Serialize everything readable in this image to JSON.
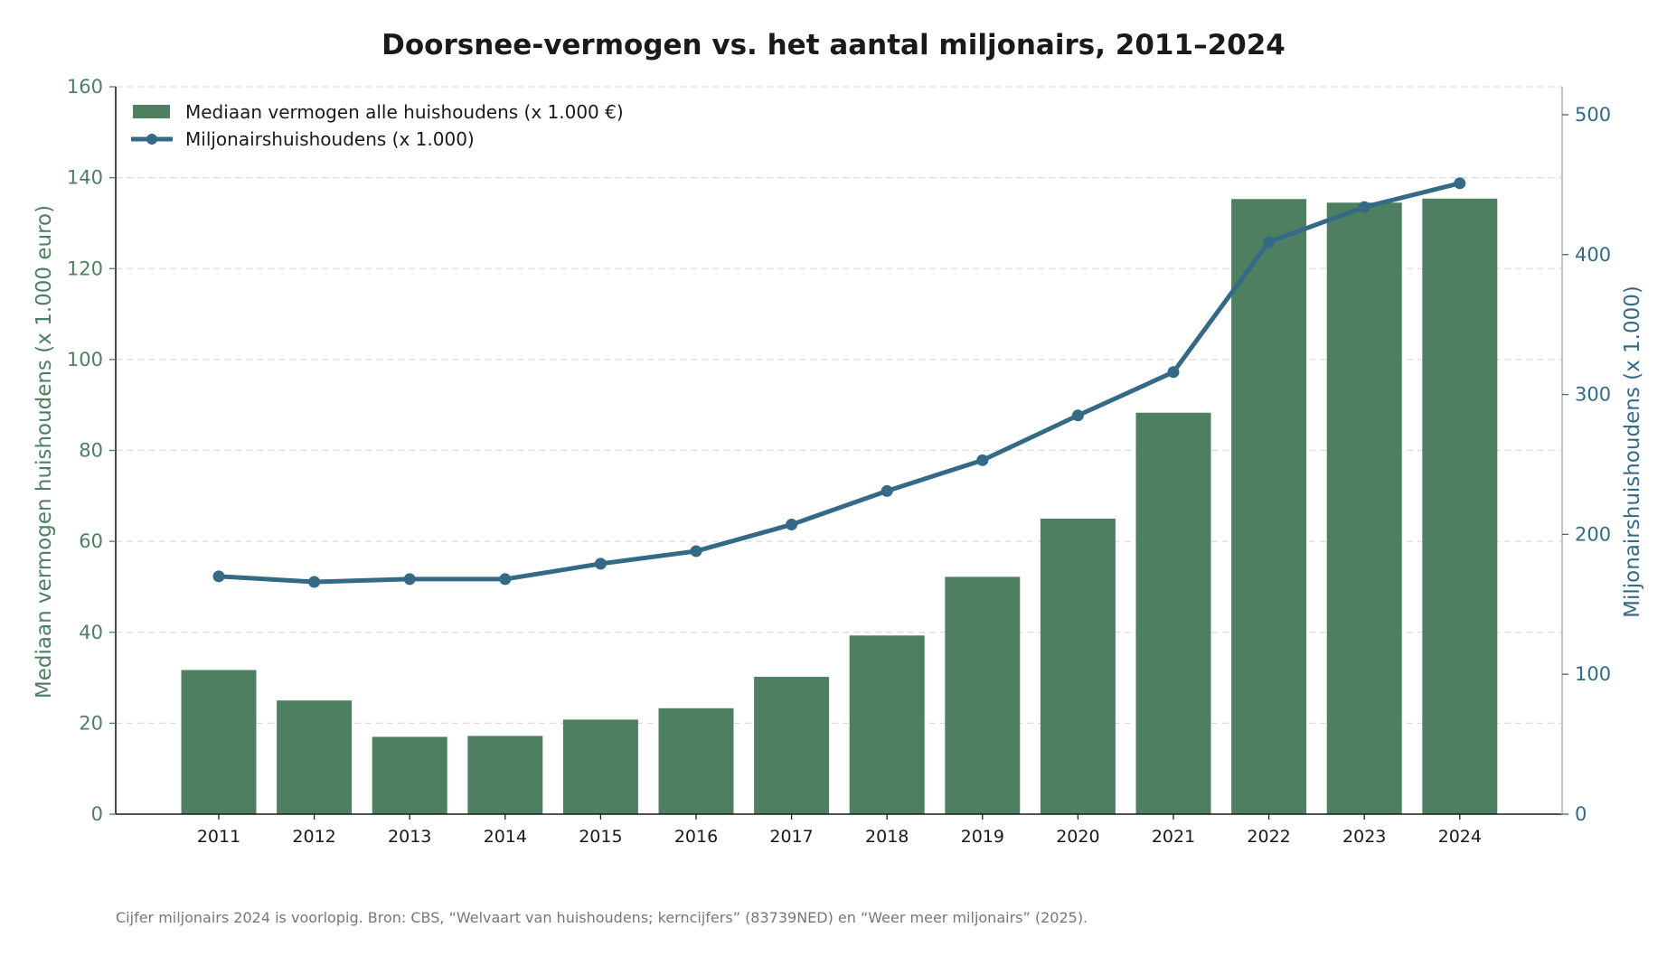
{
  "chart_data": {
    "type": "bar",
    "title": "Doorsnee-vermogen vs. het aantal miljonairs, 2011–2024",
    "categories": [
      "2011",
      "2012",
      "2013",
      "2014",
      "2015",
      "2016",
      "2017",
      "2018",
      "2019",
      "2020",
      "2021",
      "2022",
      "2023",
      "2024"
    ],
    "series": [
      {
        "name": "Mediaan vermogen alle huishoudens (x 1.000 €)",
        "type": "bar",
        "axis": "left",
        "color": "#4e7f61",
        "values": [
          31.7,
          25.0,
          17.0,
          17.2,
          20.8,
          23.3,
          30.2,
          39.3,
          52.2,
          65.0,
          88.3,
          135.3,
          134.5,
          135.4
        ]
      },
      {
        "name": "Miljonairshuishoudens (x 1.000)",
        "type": "line",
        "axis": "right",
        "color": "#346a86",
        "values": [
          170,
          166,
          168,
          168,
          179,
          188,
          207,
          231,
          253,
          285,
          316,
          409,
          434,
          451
        ]
      }
    ],
    "ylabel": "Mediaan vermogen huishoudens (x 1.000 euro)",
    "ylabel_right": "Miljonairshuishoudens (x 1.000)",
    "ylim": [
      0,
      160
    ],
    "ylim_right": [
      0,
      520
    ],
    "yticks": [
      0,
      20,
      40,
      60,
      80,
      100,
      120,
      140,
      160
    ],
    "yticks_right": [
      0,
      100,
      200,
      300,
      400,
      500
    ],
    "grid": "horizontal dashed",
    "legend_position": "top-left",
    "footnote": "Cijfer miljonairs 2024 is voorlopig. Bron: CBS, “Welvaart van huishoudens; kerncijfers” (83739NED) en “Weer meer miljonairs” (2025)."
  }
}
